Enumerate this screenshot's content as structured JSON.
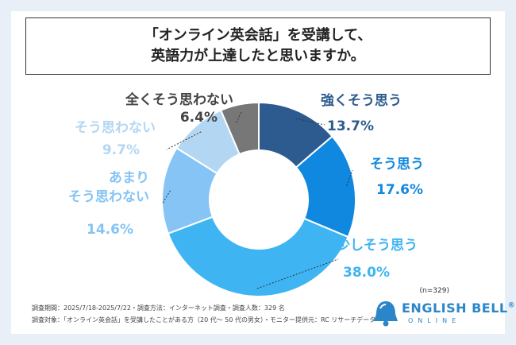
{
  "title": {
    "line1": "「オンライン英会話」を受講して、",
    "line2": "英語力が上達したと思いますか。"
  },
  "chart_data": {
    "type": "pie",
    "n_label": "(n=329)",
    "slices": [
      {
        "label": "強くそう思う",
        "value": 13.7,
        "value_label": "13.7%",
        "color": "#2e5b8f"
      },
      {
        "label": "そう思う",
        "value": 17.6,
        "value_label": "17.6%",
        "color": "#1188e0"
      },
      {
        "label": "少しそう思う",
        "value": 38.0,
        "value_label": "38.0%",
        "color": "#3fb4f2"
      },
      {
        "label": "あまり\nそう思わない",
        "value": 14.6,
        "value_label": "14.6%",
        "color": "#85c4f5"
      },
      {
        "label": "そう思わない",
        "value": 9.7,
        "value_label": "9.7%",
        "color": "#b3d7f3"
      },
      {
        "label": "全くそう思わない",
        "value": 6.4,
        "value_label": "6.4%",
        "color": "#777777"
      }
    ]
  },
  "footer": {
    "line1": "調査期間：2025/7/18-2025/7/22・調査方法：インターネット調査・調査人数：329 名",
    "line2": "調査対象：「オンライン英会話」を受講したことがある方（20 代〜 50 代の男女）・モニター提供元：RC リサーチデータ"
  },
  "logo": {
    "name": "ENGLISH BELL",
    "mark": "®",
    "sub": "ONLINE",
    "icon": "bell-icon"
  }
}
